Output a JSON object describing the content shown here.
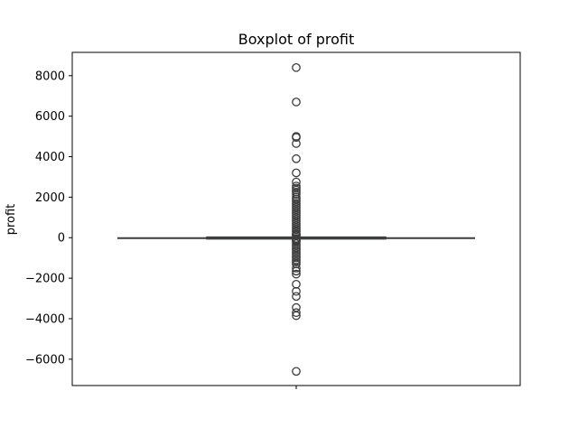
{
  "chart_data": {
    "type": "boxplot",
    "title": "Boxplot of profit",
    "xlabel": "",
    "ylabel": "profit",
    "ylim": [
      -7300,
      9150
    ],
    "yticks": [
      8000,
      6000,
      4000,
      2000,
      0,
      -2000,
      -4000,
      -6000
    ],
    "ytick_labels": [
      "8000",
      "6000",
      "4000",
      "2000",
      "0",
      "−2000",
      "−4000",
      "−6000"
    ],
    "grid": false,
    "legend": "none",
    "series": [
      {
        "whisker_low": -10,
        "q1": 2,
        "median": 8,
        "q3": 29,
        "whisker_high": 70,
        "outliers": [
          8400,
          6700,
          5000,
          4950,
          4650,
          3900,
          3200,
          2750,
          2550,
          2450,
          2350,
          2250,
          2150,
          2000,
          1900,
          1800,
          1700,
          1600,
          1500,
          1400,
          1300,
          1200,
          1100,
          1000,
          900,
          800,
          700,
          600,
          500,
          400,
          300,
          200,
          150,
          110,
          90,
          -40,
          -70,
          -100,
          -150,
          -200,
          -300,
          -400,
          -500,
          -600,
          -700,
          -800,
          -900,
          -1000,
          -1100,
          -1200,
          -1300,
          -1500,
          -1650,
          -1800,
          -2300,
          -2650,
          -2900,
          -3450,
          -3700,
          -3850,
          -6600
        ]
      }
    ],
    "colors": {
      "box_fill": "#3274a1",
      "lines": "#3d3d3d",
      "axes": "#000000"
    }
  }
}
